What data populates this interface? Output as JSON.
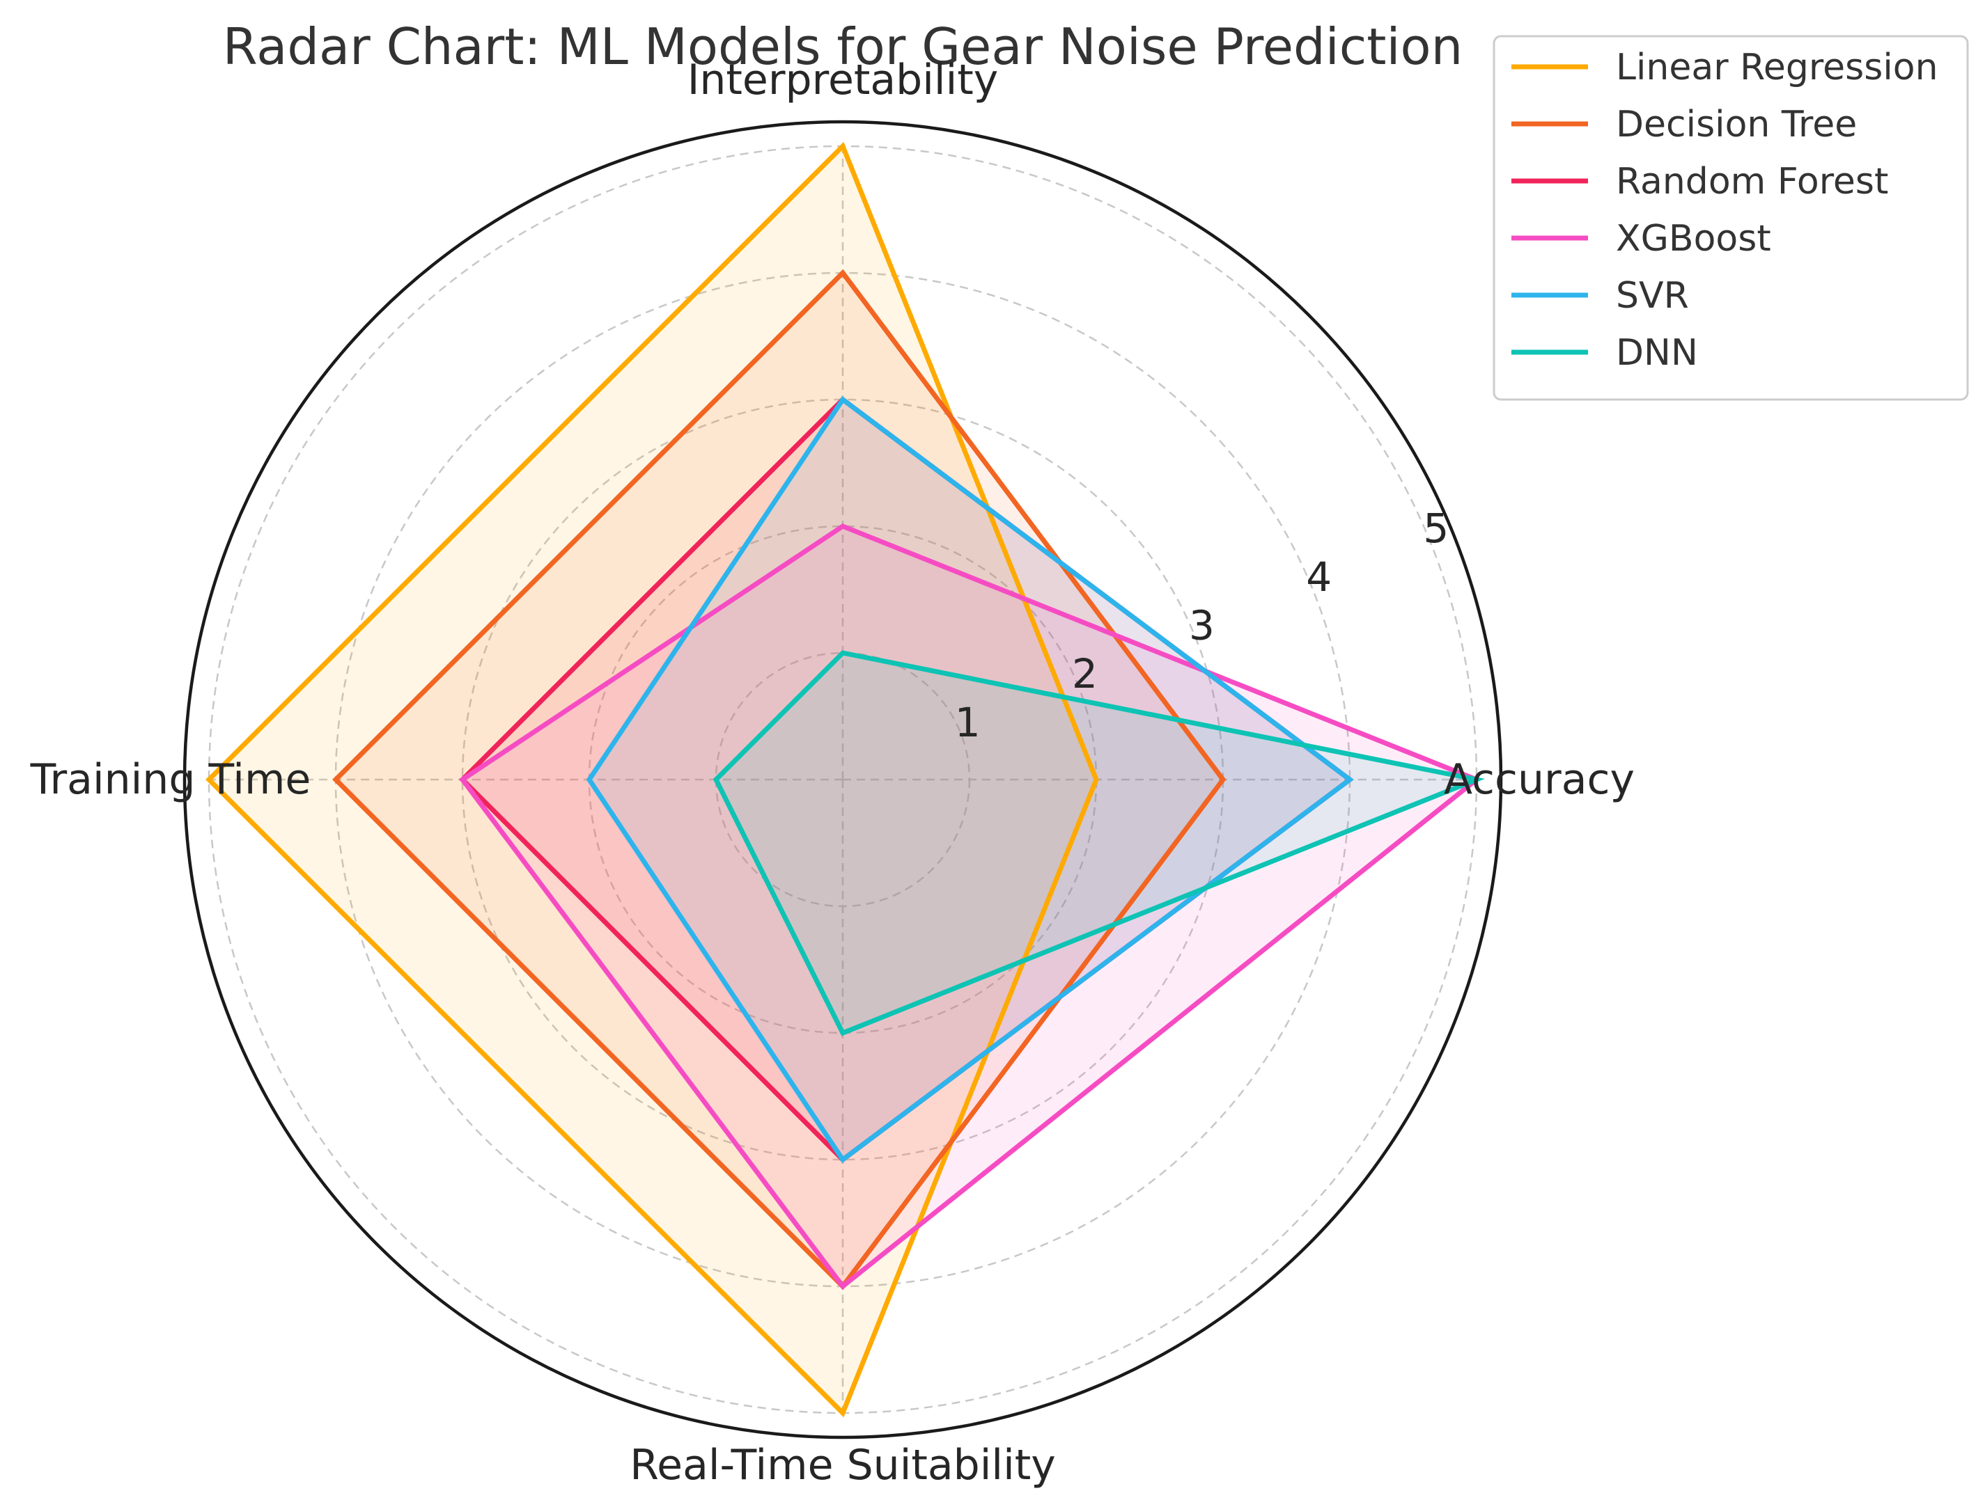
{
  "chart_data": {
    "type": "radar",
    "title": "Radar Chart: ML Models for Gear Noise Prediction",
    "axes": [
      "Accuracy",
      "Interpretability",
      "Training Time",
      "Real-Time Suitability"
    ],
    "rlim": [
      0,
      5
    ],
    "r_ticks": [
      "1",
      "2",
      "3",
      "4",
      "5"
    ],
    "grid": true,
    "legend_position": "top-right",
    "series": [
      {
        "name": "Linear Regression",
        "color": "#FFAA00",
        "values": [
          2,
          5,
          5,
          5
        ]
      },
      {
        "name": "Decision Tree",
        "color": "#F26522",
        "values": [
          3,
          4,
          4,
          4
        ]
      },
      {
        "name": "Random Forest",
        "color": "#F0245A",
        "values": [
          4,
          3,
          3,
          3
        ]
      },
      {
        "name": "XGBoost",
        "color": "#F64CC3",
        "values": [
          5,
          2,
          3,
          4
        ]
      },
      {
        "name": "SVR",
        "color": "#2DB4EC",
        "values": [
          4,
          3,
          2,
          3
        ]
      },
      {
        "name": "DNN",
        "color": "#0EC3B4",
        "values": [
          5,
          1,
          1,
          2
        ]
      }
    ]
  }
}
